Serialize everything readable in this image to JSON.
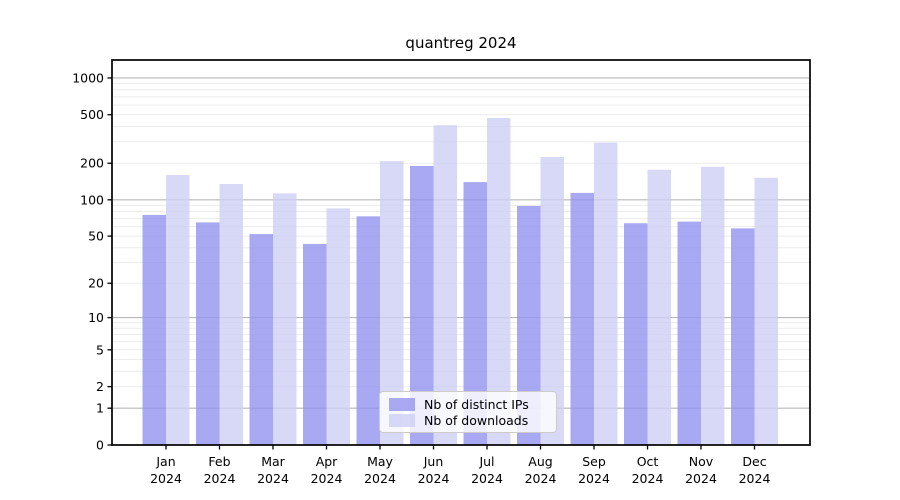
{
  "chart_data": {
    "type": "bar",
    "title": "quantreg 2024",
    "year": "2024",
    "categories": [
      "Jan",
      "Feb",
      "Mar",
      "Apr",
      "May",
      "Jun",
      "Jul",
      "Aug",
      "Sep",
      "Oct",
      "Nov",
      "Dec"
    ],
    "series": [
      {
        "name": "Nb of distinct IPs",
        "color": "#9494f0",
        "values": [
          75,
          65,
          52,
          43,
          73,
          190,
          140,
          89,
          114,
          64,
          66,
          58
        ]
      },
      {
        "name": "Nb of downloads",
        "color": "#cecef5",
        "values": [
          160,
          135,
          113,
          85,
          208,
          410,
          470,
          225,
          295,
          177,
          187,
          152
        ]
      }
    ],
    "yticks": [
      0,
      1,
      2,
      5,
      10,
      20,
      50,
      100,
      200,
      500,
      1000
    ],
    "yscale": "log1p",
    "ylim": [
      0,
      1400
    ],
    "grid": true,
    "legend_position": "lower-center",
    "colors": {
      "grid_major": "#b8b8b8",
      "grid_minor": "#ececec",
      "axis": "#000000"
    }
  }
}
